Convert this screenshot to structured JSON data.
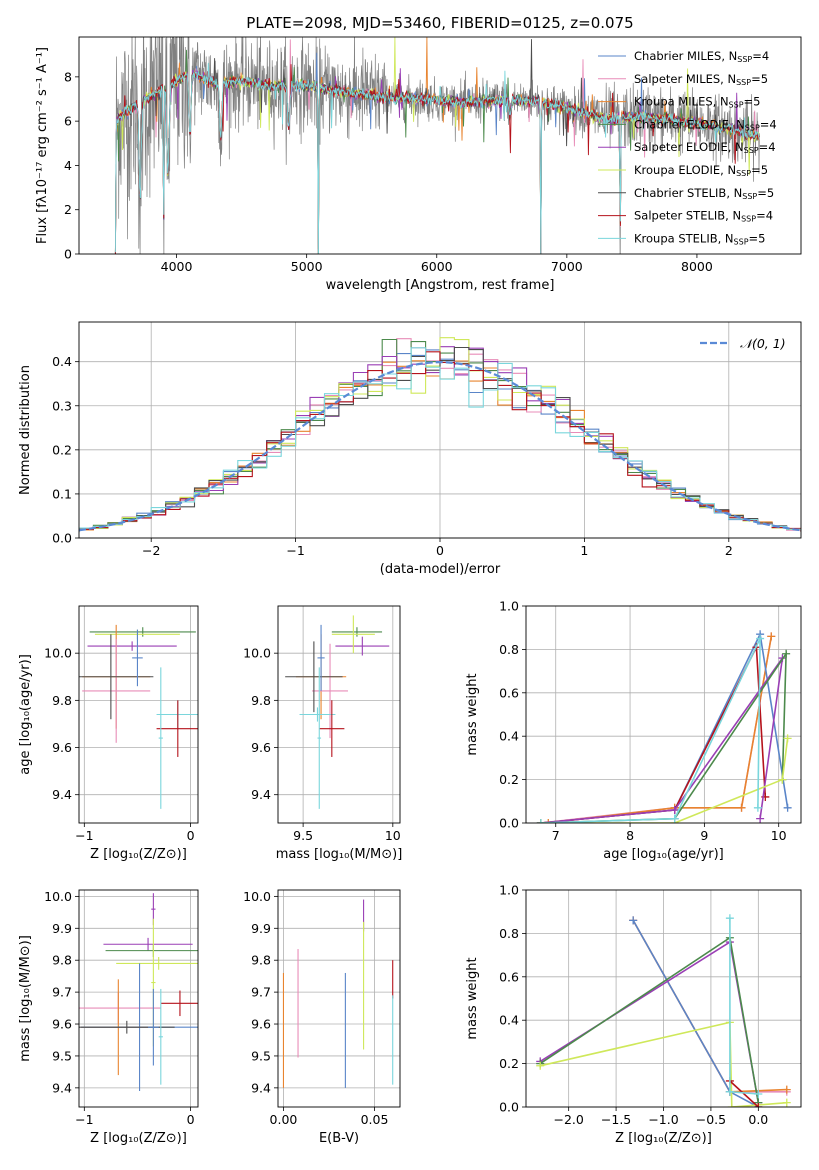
{
  "colors": {
    "chabrier_miles": "#5a85c8",
    "salpeter_miles": "#e88cb8",
    "kroupa_miles": "#e8842f",
    "chabrier_elodie": "#4c8a4c",
    "salpeter_elodie": "#9a3fb5",
    "kroupa_elodie": "#cfe85a",
    "chabrier_stelib": "#4d4d4d",
    "salpeter_stelib": "#b5121b",
    "kroupa_stelib": "#7ad6dc",
    "data": "#808080",
    "gaussian": "#5a8ad6",
    "grid": "#b0b0b0"
  },
  "chart_data": [
    {
      "id": "spectrum",
      "type": "line",
      "title": "PLATE=2098, MJD=53460, FIBERID=0125, z=0.075",
      "xlabel": "wavelength [Angstrom, rest frame]",
      "ylabel_html": "Flux [fλ10⁻¹⁷ erg cm⁻² s⁻¹ A⁻¹]",
      "xlim": [
        3250,
        8800
      ],
      "ylim": [
        0,
        9.8
      ],
      "xticks": [
        4000,
        5000,
        6000,
        7000,
        8000
      ],
      "yticks": [
        0,
        2,
        4,
        6,
        8
      ],
      "data_x_range": [
        3530,
        8480
      ],
      "grid": false,
      "legend_position": "top-right",
      "continuum": [
        [
          3530,
          6.0
        ],
        [
          3700,
          6.8
        ],
        [
          3900,
          7.4
        ],
        [
          4100,
          8.2
        ],
        [
          4300,
          7.7
        ],
        [
          4500,
          7.8
        ],
        [
          4700,
          7.6
        ],
        [
          5000,
          7.6
        ],
        [
          5300,
          7.3
        ],
        [
          5600,
          7.1
        ],
        [
          5900,
          7.0
        ],
        [
          6200,
          6.85
        ],
        [
          6500,
          6.95
        ],
        [
          6800,
          6.9
        ],
        [
          7000,
          6.6
        ],
        [
          7300,
          6.1
        ],
        [
          7600,
          6.2
        ],
        [
          7900,
          6.0
        ],
        [
          8200,
          5.7
        ],
        [
          8480,
          5.3
        ]
      ],
      "dips": [
        [
          3530,
          0.0
        ],
        [
          3720,
          2.4
        ],
        [
          3900,
          0.0
        ],
        [
          3934,
          3.6
        ],
        [
          4102,
          5.5
        ],
        [
          4340,
          5.2
        ],
        [
          4861,
          5.6
        ],
        [
          5090,
          0.0
        ],
        [
          6563,
          6.3
        ],
        [
          6800,
          0.0
        ],
        [
          7410,
          0.0
        ]
      ],
      "legend": [
        {
          "name_html": "Chabrier MILES, N<tspan font-size='8' dy='2'>SSP</tspan><tspan dy='-2'>=4</tspan>",
          "color": "#5a85c8"
        },
        {
          "name_html": "Salpeter MILES, N<tspan font-size='8' dy='2'>SSP</tspan><tspan dy='-2'>=5</tspan>",
          "color": "#e88cb8"
        },
        {
          "name_html": "Kroupa MILES, N<tspan font-size='8' dy='2'>SSP</tspan><tspan dy='-2'>=5</tspan>",
          "color": "#e8842f"
        },
        {
          "name_html": "Chabrier ELODIE, N<tspan font-size='8' dy='2'>SSP</tspan><tspan dy='-2'>=4</tspan>",
          "color": "#4c8a4c"
        },
        {
          "name_html": "Salpeter ELODIE, N<tspan font-size='8' dy='2'>SSP</tspan><tspan dy='-2'>=4</tspan>",
          "color": "#9a3fb5"
        },
        {
          "name_html": "Kroupa ELODIE, N<tspan font-size='8' dy='2'>SSP</tspan><tspan dy='-2'>=5</tspan>",
          "color": "#cfe85a"
        },
        {
          "name_html": "Chabrier STELIB, N<tspan font-size='8' dy='2'>SSP</tspan><tspan dy='-2'>=5</tspan>",
          "color": "#4d4d4d"
        },
        {
          "name_html": "Salpeter STELIB, N<tspan font-size='8' dy='2'>SSP</tspan><tspan dy='-2'>=4</tspan>",
          "color": "#b5121b"
        },
        {
          "name_html": "Kroupa STELIB, N<tspan font-size='8' dy='2'>SSP</tspan><tspan dy='-2'>=5</tspan>",
          "color": "#7ad6dc"
        }
      ]
    },
    {
      "id": "residuals",
      "type": "line",
      "xlabel": "(data-model)/error",
      "ylabel": "Normed distribution",
      "xlim": [
        -2.5,
        2.5
      ],
      "ylim": [
        0,
        0.49
      ],
      "xticks": [
        -2,
        -1,
        0,
        1,
        2
      ],
      "yticks": [
        0.0,
        0.1,
        0.2,
        0.3,
        0.4
      ],
      "bin_width": 0.1,
      "grid": true,
      "legend_position": "top-right",
      "legend": [
        {
          "name": "𝒩(0, 1)",
          "color": "#5a8ad6"
        }
      ]
    },
    {
      "id": "age_vs_Z",
      "type": "errorbar",
      "xlabel": "Z [log₁₀(Z/Z⊙)]",
      "ylabel": "age  [log₁₀(age/yr)]",
      "xlim": [
        -1.05,
        0.07
      ],
      "ylim": [
        9.28,
        10.2
      ],
      "xticks": [
        -1,
        0
      ],
      "yticks": [
        9.4,
        9.6,
        9.8,
        10.0
      ],
      "grid": true,
      "points": [
        {
          "x": -0.55,
          "xe": 0.42,
          "y": 10.03,
          "ye": 0.02,
          "color": "#9a3fb5"
        },
        {
          "x": -0.45,
          "xe": 0.5,
          "y": 10.09,
          "ye": 0.02,
          "color": "#4c8a4c"
        },
        {
          "x": -0.5,
          "xe": 0.4,
          "y": 10.08,
          "ye": 0.02,
          "color": "#cfe85a"
        },
        {
          "x": -0.7,
          "xe": 0.32,
          "y": 9.9,
          "ye": 0.22,
          "color": "#e8842f"
        },
        {
          "x": -0.7,
          "xe": 0.32,
          "y": 9.84,
          "ye": 0.22,
          "color": "#e88cb8"
        },
        {
          "x": -0.75,
          "xe": 0.4,
          "y": 9.9,
          "ye": 0.18,
          "color": "#4d4d4d"
        },
        {
          "x": -0.5,
          "xe": 0.05,
          "y": 9.98,
          "ye": 0.12,
          "color": "#5a85c8"
        },
        {
          "x": -0.12,
          "xe": 0.2,
          "y": 9.74,
          "ye": 0.06,
          "color": "#7ad6dc"
        },
        {
          "x": -0.12,
          "xe": 0.2,
          "y": 9.68,
          "ye": 0.12,
          "color": "#b5121b"
        },
        {
          "x": -0.28,
          "xe": 0.02,
          "y": 9.64,
          "ye": 0.3,
          "color": "#7ad6dc"
        }
      ]
    },
    {
      "id": "age_vs_mass",
      "type": "errorbar",
      "xlabel": "mass [log₁₀(M/M⊙)]",
      "xlim": [
        9.36,
        10.04
      ],
      "ylim": [
        9.28,
        10.2
      ],
      "xticks": [
        9.5,
        10.0
      ],
      "yticks": [
        9.4,
        9.6,
        9.8,
        10.0
      ],
      "grid": true,
      "points": [
        {
          "x": 9.83,
          "xe": 0.15,
          "y": 10.03,
          "ye": 0.04,
          "color": "#9a3fb5"
        },
        {
          "x": 9.8,
          "xe": 0.14,
          "y": 10.09,
          "ye": 0.02,
          "color": "#4c8a4c"
        },
        {
          "x": 9.78,
          "xe": 0.12,
          "y": 10.08,
          "ye": 0.08,
          "color": "#cfe85a"
        },
        {
          "x": 9.6,
          "xe": 0.14,
          "y": 9.9,
          "ye": 0.18,
          "color": "#e8842f"
        },
        {
          "x": 9.65,
          "xe": 0.1,
          "y": 9.84,
          "ye": 0.2,
          "color": "#e88cb8"
        },
        {
          "x": 9.56,
          "xe": 0.16,
          "y": 9.9,
          "ye": 0.15,
          "color": "#4d4d4d"
        },
        {
          "x": 9.6,
          "xe": 0.02,
          "y": 9.98,
          "ye": 0.14,
          "color": "#5a85c8"
        },
        {
          "x": 9.58,
          "xe": 0.1,
          "y": 9.74,
          "ye": 0.03,
          "color": "#7ad6dc"
        },
        {
          "x": 9.66,
          "xe": 0.07,
          "y": 9.68,
          "ye": 0.12,
          "color": "#b5121b"
        },
        {
          "x": 9.59,
          "xe": 0.01,
          "y": 9.64,
          "ye": 0.3,
          "color": "#7ad6dc"
        }
      ]
    },
    {
      "id": "weight_vs_age",
      "type": "line",
      "xlabel": "age  [log₁₀(age/yr)]",
      "ylabel": "mass weight",
      "xlim": [
        6.6,
        10.3
      ],
      "ylim": [
        0,
        1.0
      ],
      "xticks": [
        7,
        8,
        9,
        10
      ],
      "yticks": [
        0.0,
        0.2,
        0.4,
        0.6,
        0.8,
        1.0
      ],
      "grid": true,
      "series": [
        {
          "color": "#e88cb8",
          "x": [
            6.8,
            8.6,
            9.5,
            9.9
          ],
          "y": [
            0.0,
            0.07,
            0.07,
            0.86
          ]
        },
        {
          "color": "#e8842f",
          "x": [
            6.9,
            8.6,
            9.5,
            9.9
          ],
          "y": [
            0.0,
            0.07,
            0.07,
            0.86
          ]
        },
        {
          "color": "#5a85c8",
          "x": [
            6.8,
            8.6,
            9.75,
            10.12
          ],
          "y": [
            0.0,
            0.06,
            0.87,
            0.07
          ]
        },
        {
          "color": "#b5121b",
          "x": [
            6.8,
            8.6,
            9.7,
            9.82
          ],
          "y": [
            0.0,
            0.06,
            0.81,
            0.12
          ]
        },
        {
          "color": "#9a3fb5",
          "x": [
            6.8,
            8.6,
            10.05,
            9.75
          ],
          "y": [
            0.0,
            0.06,
            0.76,
            0.02
          ]
        },
        {
          "color": "#4c8a4c",
          "x": [
            6.8,
            8.6,
            10.1,
            10.05
          ],
          "y": [
            0.0,
            0.02,
            0.78,
            0.2
          ]
        },
        {
          "color": "#cfe85a",
          "x": [
            6.8,
            8.6,
            10.05,
            10.12
          ],
          "y": [
            0.0,
            0.0,
            0.2,
            0.39
          ]
        },
        {
          "color": "#7ad6dc",
          "x": [
            6.8,
            8.6,
            9.75,
            9.72
          ],
          "y": [
            0.0,
            0.02,
            0.85,
            0.07
          ]
        }
      ]
    },
    {
      "id": "mass_vs_Z",
      "type": "errorbar",
      "xlabel": "Z [log₁₀(Z/Z⊙)]",
      "ylabel": "mass [log₁₀(M/M⊙)]",
      "xlim": [
        -1.05,
        0.07
      ],
      "ylim": [
        9.34,
        10.02
      ],
      "xticks": [
        -1,
        0
      ],
      "yticks": [
        9.4,
        9.5,
        9.6,
        9.7,
        9.8,
        9.9,
        10.0
      ],
      "grid": true,
      "points": [
        {
          "x": -0.4,
          "xe": 0.42,
          "y": 9.85,
          "ye": 0.02,
          "color": "#9a3fb5"
        },
        {
          "x": -0.35,
          "xe": 0.45,
          "y": 9.83,
          "ye": 0.02,
          "color": "#4c8a4c"
        },
        {
          "x": -0.3,
          "xe": 0.4,
          "y": 9.79,
          "ye": 0.02,
          "color": "#cfe85a"
        },
        {
          "x": -0.35,
          "xe": 0.02,
          "y": 9.96,
          "ye": 0.05,
          "color": "#9a3fb5"
        },
        {
          "x": -0.35,
          "xe": 0.02,
          "y": 9.73,
          "ye": 0.2,
          "color": "#cfe85a"
        },
        {
          "x": -0.68,
          "xe": 0.4,
          "y": 9.65,
          "ye": 0.05,
          "color": "#e88cb8"
        },
        {
          "x": -0.68,
          "xe": 0.35,
          "y": 9.59,
          "ye": 0.15,
          "color": "#e8842f"
        },
        {
          "x": -0.48,
          "xe": 0.55,
          "y": 9.59,
          "ye": 0.2,
          "color": "#5a85c8"
        },
        {
          "x": -0.6,
          "xe": 0.45,
          "y": 9.59,
          "ye": 0.02,
          "color": "#4d4d4d"
        },
        {
          "x": -0.1,
          "xe": 0.18,
          "y": 9.665,
          "ye": 0.04,
          "color": "#b5121b"
        },
        {
          "x": -0.28,
          "xe": 0.02,
          "y": 9.56,
          "ye": 0.15,
          "color": "#7ad6dc"
        },
        {
          "x": -0.35,
          "xe": 0.05,
          "y": 9.59,
          "ye": 0.12,
          "color": "#5a85c8"
        }
      ]
    },
    {
      "id": "mass_vs_ebv",
      "type": "errorbar",
      "xlabel": "E(B-V)",
      "xlim": [
        -0.003,
        0.064
      ],
      "ylim": [
        9.34,
        10.02
      ],
      "xticks": [
        0.0,
        0.05
      ],
      "xtick_labels": [
        "0.00",
        "0.05"
      ],
      "yticks": [
        9.4,
        9.5,
        9.6,
        9.7,
        9.8,
        9.9,
        10.0
      ],
      "grid": true,
      "points": [
        {
          "x": 0.0,
          "xe": 0.0,
          "y": 9.58,
          "ye": 0.18,
          "color": "#e8842f"
        },
        {
          "x": 0.008,
          "xe": 0.0,
          "y": 9.665,
          "ye": 0.17,
          "color": "#e88cb8"
        },
        {
          "x": 0.034,
          "xe": 0.0,
          "y": 9.58,
          "ye": 0.18,
          "color": "#5a85c8"
        },
        {
          "x": 0.044,
          "xe": 0.0,
          "y": 9.94,
          "ye": 0.05,
          "color": "#9a3fb5"
        },
        {
          "x": 0.044,
          "xe": 0.0,
          "y": 9.72,
          "ye": 0.2,
          "color": "#cfe85a"
        },
        {
          "x": 0.06,
          "xe": 0.0,
          "y": 9.74,
          "ye": 0.06,
          "color": "#b5121b"
        },
        {
          "x": 0.06,
          "xe": 0.0,
          "y": 9.55,
          "ye": 0.14,
          "color": "#7ad6dc"
        }
      ]
    },
    {
      "id": "weight_vs_Z",
      "type": "line",
      "xlabel": "Z [log₁₀(Z/Z⊙)]",
      "ylabel": "mass weight",
      "xlim": [
        -2.45,
        0.45
      ],
      "ylim": [
        0,
        1.0
      ],
      "xticks": [
        -2.0,
        -1.5,
        -1.0,
        -0.5,
        0.0
      ],
      "xtick_labels": [
        "−2.0",
        "−1.5",
        "−1.0",
        "−0.5",
        "0.0"
      ],
      "yticks": [
        0.0,
        0.2,
        0.4,
        0.6,
        0.8,
        1.0
      ],
      "grid": true,
      "series": [
        {
          "color": "#e88cb8",
          "x": [
            -1.32,
            -0.3,
            0.3
          ],
          "y": [
            0.86,
            0.07,
            0.07
          ]
        },
        {
          "color": "#e8842f",
          "x": [
            -1.32,
            -0.3,
            0.3
          ],
          "y": [
            0.86,
            0.07,
            0.08
          ]
        },
        {
          "color": "#5a85c8",
          "x": [
            -1.32,
            -0.3,
            0.0
          ],
          "y": [
            0.86,
            0.07,
            0.0
          ]
        },
        {
          "color": "#9a3fb5",
          "x": [
            -2.3,
            -0.3,
            0.0
          ],
          "y": [
            0.21,
            0.76,
            0.02
          ]
        },
        {
          "color": "#4c8a4c",
          "x": [
            -2.3,
            -0.3,
            0.0
          ],
          "y": [
            0.2,
            0.78,
            0.02
          ]
        },
        {
          "color": "#cfe85a",
          "x": [
            -2.3,
            -0.3,
            -0.28,
            0.3
          ],
          "y": [
            0.19,
            0.39,
            0.0,
            0.02
          ]
        },
        {
          "color": "#b5121b",
          "x": [
            -0.3,
            0.0
          ],
          "y": [
            0.12,
            0.0
          ]
        },
        {
          "color": "#7ad6dc",
          "x": [
            -0.3,
            -0.3,
            0.0
          ],
          "y": [
            0.87,
            0.07,
            0.06
          ]
        }
      ]
    }
  ]
}
